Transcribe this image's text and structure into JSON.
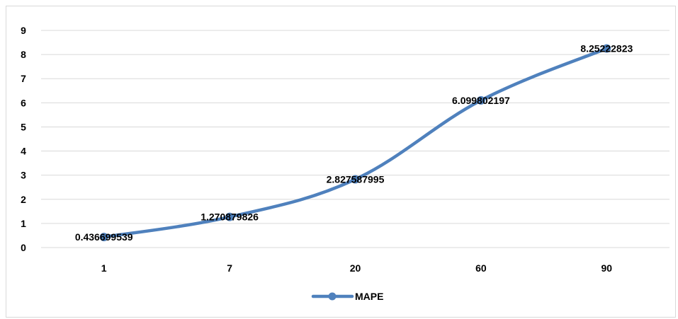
{
  "chart_data": {
    "type": "line",
    "categories": [
      "1",
      "7",
      "20",
      "60",
      "90"
    ],
    "series": [
      {
        "name": "MAPE",
        "values": [
          0.436699539,
          1.270879826,
          2.827587995,
          6.099802197,
          8.25222823
        ],
        "labels": [
          "0.436699539",
          "1.270879826",
          "2.827587995",
          "6.099802197",
          "8.25222823"
        ]
      }
    ],
    "title": "",
    "xlabel": "",
    "ylabel": "",
    "ylim": [
      0,
      9
    ],
    "yticks": [
      "0",
      "1",
      "2",
      "3",
      "4",
      "5",
      "6",
      "7",
      "8",
      "9"
    ],
    "grid": true,
    "legend": "bottom",
    "colors": {
      "series": "#4f81bd",
      "grid": "#d9d9d9",
      "text": "#000000"
    }
  }
}
